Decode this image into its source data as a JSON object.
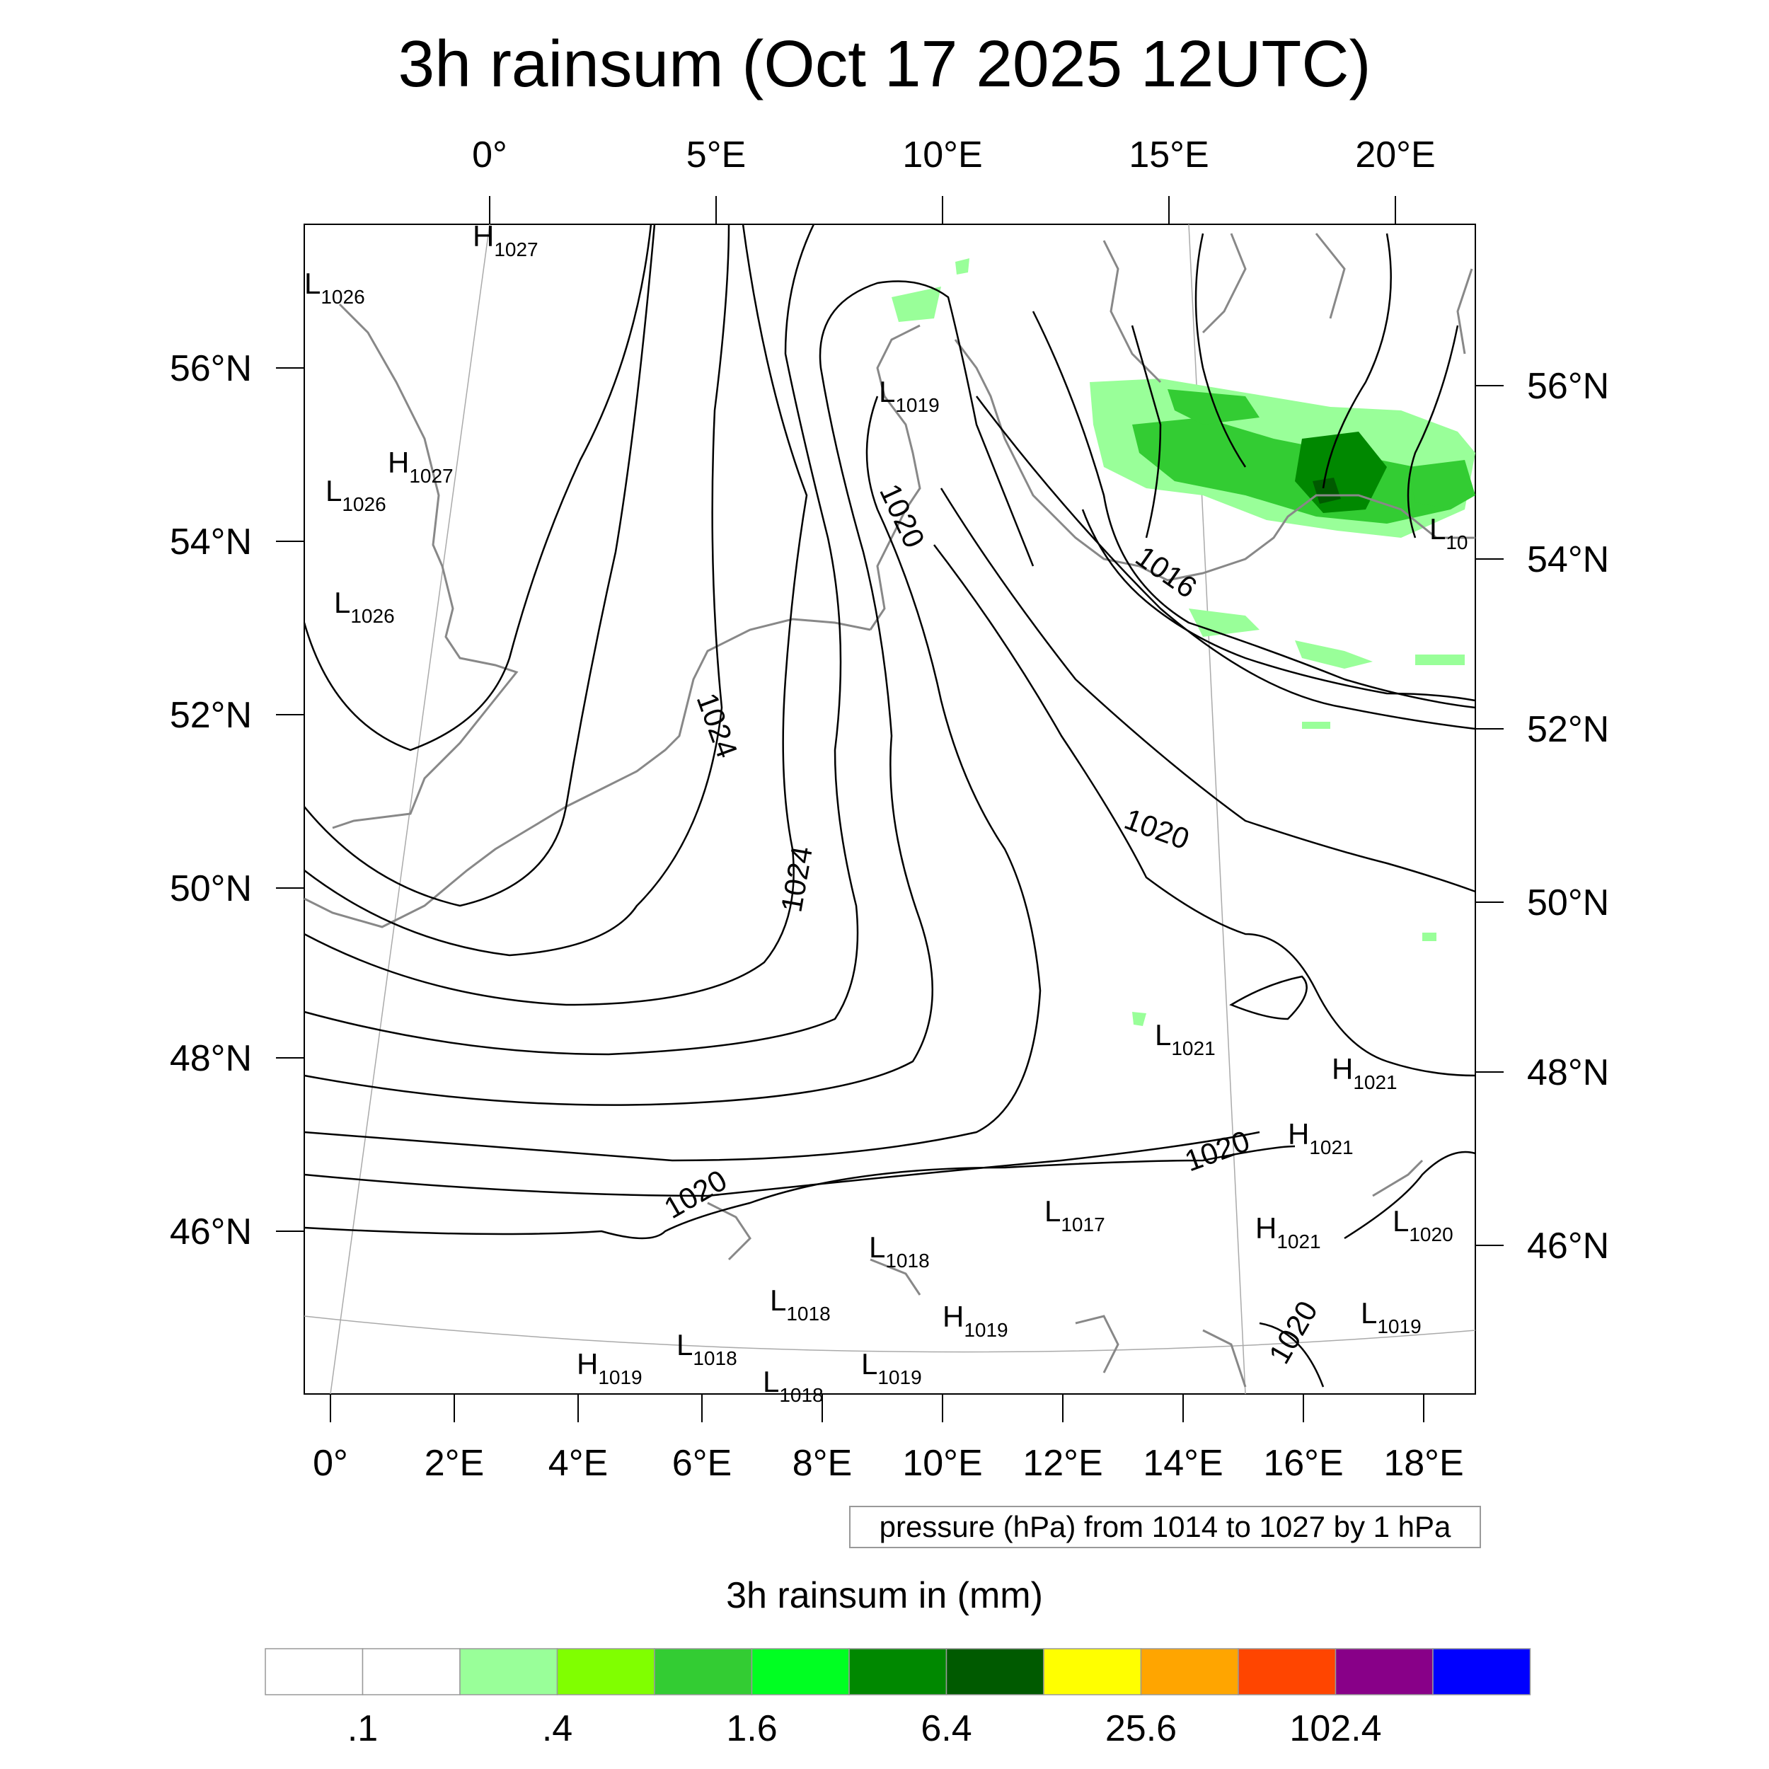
{
  "title": "3h rainsum (Oct 17 2025 12UTC)",
  "pressure_note": "pressure (hPa) from 1014 to 1027 by 1 hPa",
  "colorbar": {
    "title": "3h rainsum in (mm)",
    "colors": [
      "#ffffff",
      "#ffffff",
      "#99ff99",
      "#80ff00",
      "#33cc33",
      "#00ff22",
      "#008800",
      "#005a00",
      "#ffff00",
      "#ffa500",
      "#ff4500",
      "#880088",
      "#0000ff"
    ],
    "labels": [
      ".1",
      ".4",
      "1.6",
      "6.4",
      "25.6",
      "102.4"
    ]
  },
  "axes": {
    "top_lon": [
      "0°",
      "5°E",
      "10°E",
      "15°E",
      "20°E"
    ],
    "bottom_lon": [
      "0°",
      "2°E",
      "4°E",
      "6°E",
      "8°E",
      "10°E",
      "12°E",
      "14°E",
      "16°E",
      "18°E"
    ],
    "left_lat": [
      "56°N",
      "54°N",
      "52°N",
      "50°N",
      "48°N",
      "46°N"
    ],
    "right_lat": [
      "56°N",
      "54°N",
      "52°N",
      "50°N",
      "48°N",
      "46°N"
    ]
  },
  "pressure_centers": [
    {
      "type": "H",
      "value": "1027"
    },
    {
      "type": "L",
      "value": "1026"
    },
    {
      "type": "H",
      "value": "1027"
    },
    {
      "type": "L",
      "value": "1026"
    },
    {
      "type": "L",
      "value": "1026"
    },
    {
      "type": "L",
      "value": "1019"
    },
    {
      "type": "L",
      "value": "10"
    },
    {
      "type": "L",
      "value": "1021"
    },
    {
      "type": "H",
      "value": "1021"
    },
    {
      "type": "H",
      "value": "1021"
    },
    {
      "type": "H",
      "value": "1021"
    },
    {
      "type": "L",
      "value": "1020"
    },
    {
      "type": "L",
      "value": "1017"
    },
    {
      "type": "L",
      "value": "1018"
    },
    {
      "type": "L",
      "value": "1018"
    },
    {
      "type": "H",
      "value": "1019"
    },
    {
      "type": "L",
      "value": "1019"
    },
    {
      "type": "L",
      "value": "1018"
    },
    {
      "type": "H",
      "value": "1019"
    },
    {
      "type": "L",
      "value": "1019"
    },
    {
      "type": "L",
      "value": "1018"
    }
  ],
  "contour_labels": [
    "1020",
    "1016",
    "1024",
    "1024",
    "1020",
    "1020",
    "1020",
    "1020"
  ]
}
